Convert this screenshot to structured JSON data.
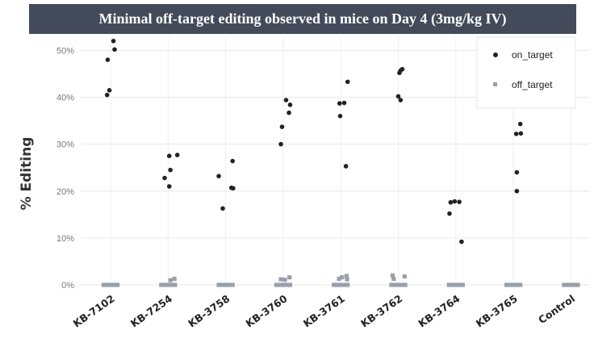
{
  "chart_data": {
    "type": "scatter",
    "title": "Minimal off-target editing observed in mice on Day 4 (3mg/kg IV)",
    "ylabel": "% Editing",
    "xlabel": "",
    "ylim": [
      0,
      0.53
    ],
    "yticks": [
      0,
      0.1,
      0.2,
      0.3,
      0.4,
      0.5
    ],
    "ytick_labels": [
      "0%",
      "10%",
      "20%",
      "30%",
      "40%",
      "50%"
    ],
    "grid": true,
    "legend_position": "top-right",
    "categories": [
      "KB-7102",
      "KB-7254",
      "KB-3758",
      "KB-3760",
      "KB-3761",
      "KB-3762",
      "KB-3764",
      "KB-3765",
      "Control"
    ],
    "series": [
      {
        "name": "on_target",
        "color": "#222222",
        "points": [
          {
            "cat": 0,
            "jitter": -0.05,
            "y": 0.48
          },
          {
            "cat": 0,
            "jitter": 0.05,
            "y": 0.52
          },
          {
            "cat": 0,
            "jitter": 0.07,
            "y": 0.502
          },
          {
            "cat": 0,
            "jitter": -0.02,
            "y": 0.415
          },
          {
            "cat": 0,
            "jitter": -0.06,
            "y": 0.405
          },
          {
            "cat": 1,
            "jitter": 0.02,
            "y": 0.275
          },
          {
            "cat": 1,
            "jitter": 0.16,
            "y": 0.277
          },
          {
            "cat": 1,
            "jitter": 0.04,
            "y": 0.245
          },
          {
            "cat": 1,
            "jitter": -0.06,
            "y": 0.228
          },
          {
            "cat": 1,
            "jitter": 0.02,
            "y": 0.21
          },
          {
            "cat": 2,
            "jitter": 0.12,
            "y": 0.264
          },
          {
            "cat": 2,
            "jitter": -0.12,
            "y": 0.232
          },
          {
            "cat": 2,
            "jitter": 0.1,
            "y": 0.207
          },
          {
            "cat": 2,
            "jitter": 0.13,
            "y": 0.206
          },
          {
            "cat": 2,
            "jitter": -0.05,
            "y": 0.163
          },
          {
            "cat": 3,
            "jitter": 0.05,
            "y": 0.394
          },
          {
            "cat": 3,
            "jitter": 0.12,
            "y": 0.384
          },
          {
            "cat": 3,
            "jitter": 0.1,
            "y": 0.367
          },
          {
            "cat": 3,
            "jitter": -0.02,
            "y": 0.337
          },
          {
            "cat": 3,
            "jitter": -0.04,
            "y": 0.3
          },
          {
            "cat": 4,
            "jitter": 0.12,
            "y": 0.433
          },
          {
            "cat": 4,
            "jitter": -0.02,
            "y": 0.387
          },
          {
            "cat": 4,
            "jitter": 0.06,
            "y": 0.388
          },
          {
            "cat": 4,
            "jitter": -0.01,
            "y": 0.36
          },
          {
            "cat": 4,
            "jitter": 0.09,
            "y": 0.253
          },
          {
            "cat": 5,
            "jitter": 0.04,
            "y": 0.457
          },
          {
            "cat": 5,
            "jitter": 0.07,
            "y": 0.46
          },
          {
            "cat": 5,
            "jitter": 0.02,
            "y": 0.452
          },
          {
            "cat": 5,
            "jitter": 0.0,
            "y": 0.402
          },
          {
            "cat": 5,
            "jitter": 0.04,
            "y": 0.394
          },
          {
            "cat": 6,
            "jitter": -0.09,
            "y": 0.176
          },
          {
            "cat": 6,
            "jitter": -0.02,
            "y": 0.178
          },
          {
            "cat": 6,
            "jitter": 0.06,
            "y": 0.177
          },
          {
            "cat": 6,
            "jitter": -0.11,
            "y": 0.152
          },
          {
            "cat": 6,
            "jitter": 0.1,
            "y": 0.092
          },
          {
            "cat": 7,
            "jitter": 0.12,
            "y": 0.343
          },
          {
            "cat": 7,
            "jitter": 0.05,
            "y": 0.322
          },
          {
            "cat": 7,
            "jitter": 0.13,
            "y": 0.323
          },
          {
            "cat": 7,
            "jitter": 0.06,
            "y": 0.24
          },
          {
            "cat": 7,
            "jitter": 0.06,
            "y": 0.2
          }
        ]
      },
      {
        "name": "off_target",
        "color": "#9aa0aa",
        "points": [
          {
            "cat": 0,
            "jitter": -0.12,
            "y": 0.0
          },
          {
            "cat": 0,
            "jitter": -0.06,
            "y": 0.0
          },
          {
            "cat": 0,
            "jitter": 0.0,
            "y": 0.0
          },
          {
            "cat": 0,
            "jitter": 0.06,
            "y": 0.0
          },
          {
            "cat": 0,
            "jitter": 0.12,
            "y": 0.0
          },
          {
            "cat": 1,
            "jitter": -0.12,
            "y": 0.0
          },
          {
            "cat": 1,
            "jitter": -0.06,
            "y": 0.0
          },
          {
            "cat": 1,
            "jitter": 0.0,
            "y": 0.0
          },
          {
            "cat": 1,
            "jitter": 0.06,
            "y": 0.0
          },
          {
            "cat": 1,
            "jitter": 0.12,
            "y": 0.0
          },
          {
            "cat": 1,
            "jitter": 0.04,
            "y": 0.01
          },
          {
            "cat": 1,
            "jitter": 0.11,
            "y": 0.013
          },
          {
            "cat": 2,
            "jitter": -0.12,
            "y": 0.0
          },
          {
            "cat": 2,
            "jitter": -0.06,
            "y": 0.0
          },
          {
            "cat": 2,
            "jitter": 0.0,
            "y": 0.0
          },
          {
            "cat": 2,
            "jitter": 0.06,
            "y": 0.0
          },
          {
            "cat": 2,
            "jitter": 0.12,
            "y": 0.0
          },
          {
            "cat": 3,
            "jitter": -0.12,
            "y": 0.0
          },
          {
            "cat": 3,
            "jitter": -0.06,
            "y": 0.0
          },
          {
            "cat": 3,
            "jitter": 0.0,
            "y": 0.0
          },
          {
            "cat": 3,
            "jitter": 0.06,
            "y": 0.0
          },
          {
            "cat": 3,
            "jitter": 0.12,
            "y": 0.0
          },
          {
            "cat": 3,
            "jitter": -0.04,
            "y": 0.012
          },
          {
            "cat": 3,
            "jitter": 0.03,
            "y": 0.011
          },
          {
            "cat": 3,
            "jitter": 0.11,
            "y": 0.016
          },
          {
            "cat": 4,
            "jitter": -0.12,
            "y": 0.0
          },
          {
            "cat": 4,
            "jitter": -0.06,
            "y": 0.0
          },
          {
            "cat": 4,
            "jitter": 0.0,
            "y": 0.0
          },
          {
            "cat": 4,
            "jitter": 0.06,
            "y": 0.0
          },
          {
            "cat": 4,
            "jitter": 0.12,
            "y": 0.0
          },
          {
            "cat": 4,
            "jitter": -0.03,
            "y": 0.013
          },
          {
            "cat": 4,
            "jitter": 0.02,
            "y": 0.016
          },
          {
            "cat": 4,
            "jitter": 0.1,
            "y": 0.019
          },
          {
            "cat": 4,
            "jitter": 0.11,
            "y": 0.012
          },
          {
            "cat": 5,
            "jitter": -0.12,
            "y": 0.0
          },
          {
            "cat": 5,
            "jitter": -0.06,
            "y": 0.0
          },
          {
            "cat": 5,
            "jitter": 0.0,
            "y": 0.0
          },
          {
            "cat": 5,
            "jitter": 0.06,
            "y": 0.0
          },
          {
            "cat": 5,
            "jitter": 0.12,
            "y": 0.0
          },
          {
            "cat": 5,
            "jitter": -0.1,
            "y": 0.02
          },
          {
            "cat": 5,
            "jitter": -0.08,
            "y": 0.013
          },
          {
            "cat": 5,
            "jitter": 0.11,
            "y": 0.018
          },
          {
            "cat": 6,
            "jitter": -0.12,
            "y": 0.0
          },
          {
            "cat": 6,
            "jitter": -0.06,
            "y": 0.0
          },
          {
            "cat": 6,
            "jitter": 0.0,
            "y": 0.0
          },
          {
            "cat": 6,
            "jitter": 0.06,
            "y": 0.0
          },
          {
            "cat": 6,
            "jitter": 0.12,
            "y": 0.0
          },
          {
            "cat": 7,
            "jitter": -0.12,
            "y": 0.0
          },
          {
            "cat": 7,
            "jitter": -0.06,
            "y": 0.0
          },
          {
            "cat": 7,
            "jitter": 0.0,
            "y": 0.0
          },
          {
            "cat": 7,
            "jitter": 0.06,
            "y": 0.0
          },
          {
            "cat": 7,
            "jitter": 0.12,
            "y": 0.0
          },
          {
            "cat": 8,
            "jitter": -0.12,
            "y": 0.0
          },
          {
            "cat": 8,
            "jitter": -0.06,
            "y": 0.0
          },
          {
            "cat": 8,
            "jitter": 0.0,
            "y": 0.0
          },
          {
            "cat": 8,
            "jitter": 0.06,
            "y": 0.0
          },
          {
            "cat": 8,
            "jitter": 0.12,
            "y": 0.0
          }
        ]
      }
    ]
  }
}
